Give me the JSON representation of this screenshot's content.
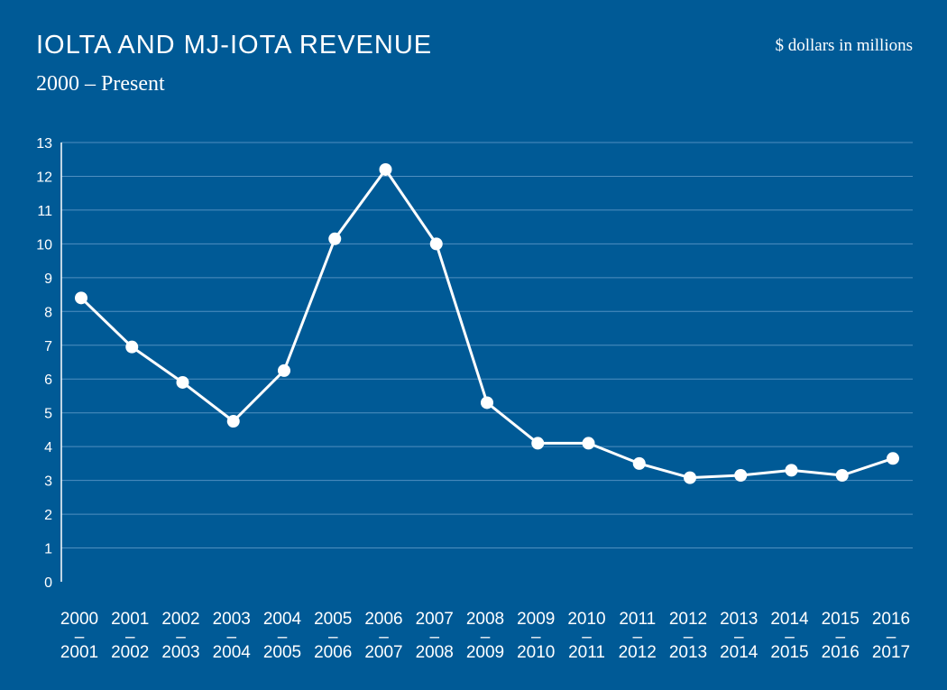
{
  "header": {
    "title": "IOLTA AND MJ-IOTA REVENUE",
    "subtitle": "2000 – Present",
    "units": "$ dollars in millions"
  },
  "colors": {
    "background": "#005a96",
    "line": "#ffffff",
    "grid": "#4f8fc0"
  },
  "chart_data": {
    "type": "line",
    "title": "IOLTA AND MJ-IOTA REVENUE",
    "subtitle": "2000 – Present",
    "ylabel": "$ dollars in millions",
    "xlabel": "",
    "ylim": [
      0,
      13
    ],
    "yticks": [
      0,
      1,
      2,
      3,
      4,
      5,
      6,
      7,
      8,
      9,
      10,
      11,
      12,
      13
    ],
    "grid": true,
    "categories": [
      [
        "2000",
        "–",
        "2001"
      ],
      [
        "2001",
        "–",
        "2002"
      ],
      [
        "2002",
        "–",
        "2003"
      ],
      [
        "2003",
        "–",
        "2004"
      ],
      [
        "2004",
        "–",
        "2005"
      ],
      [
        "2005",
        "–",
        "2006"
      ],
      [
        "2006",
        "–",
        "2007"
      ],
      [
        "2007",
        "–",
        "2008"
      ],
      [
        "2008",
        "–",
        "2009"
      ],
      [
        "2009",
        "–",
        "2010"
      ],
      [
        "2010",
        "–",
        "2011"
      ],
      [
        "2011",
        "–",
        "2012"
      ],
      [
        "2012",
        "–",
        "2013"
      ],
      [
        "2013",
        "–",
        "2014"
      ],
      [
        "2014",
        "–",
        "2015"
      ],
      [
        "2015",
        "–",
        "2016"
      ],
      [
        "2016",
        "–",
        "2017"
      ]
    ],
    "values": [
      8.4,
      6.95,
      5.9,
      4.75,
      6.25,
      10.15,
      12.2,
      10.0,
      5.3,
      4.1,
      4.1,
      3.5,
      3.08,
      3.15,
      3.3,
      3.15,
      3.65
    ]
  }
}
